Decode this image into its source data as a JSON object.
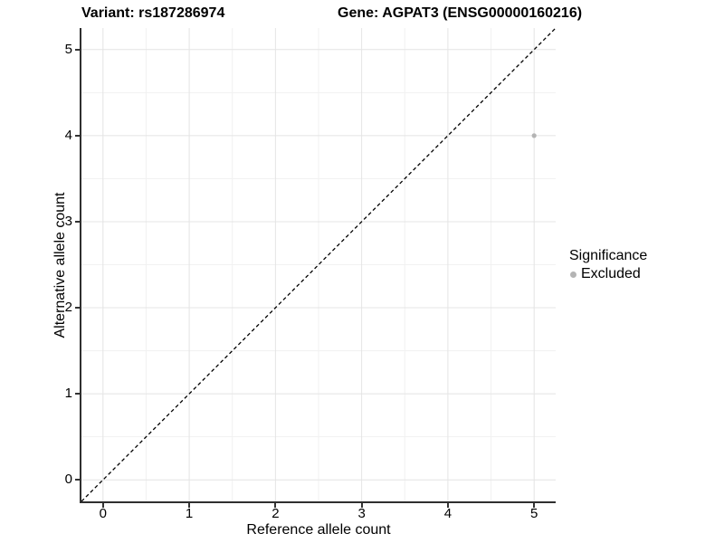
{
  "chart_data": {
    "type": "scatter",
    "title_left": "Variant: rs187286974",
    "title_right": "Gene: AGPAT3 (ENSG00000160216)",
    "xlabel": "Reference allele count",
    "ylabel": "Alternative allele count",
    "xlim": [
      -0.25,
      5.25
    ],
    "ylim": [
      -0.25,
      5.25
    ],
    "x_ticks": [
      0,
      1,
      2,
      3,
      4,
      5
    ],
    "y_ticks": [
      0,
      1,
      2,
      3,
      4,
      5
    ],
    "x_minor_ticks": [
      0.5,
      1.5,
      2.5,
      3.5,
      4.5
    ],
    "y_minor_ticks": [
      0.5,
      1.5,
      2.5,
      3.5,
      4.5
    ],
    "grid": "major+minor",
    "reference_line": {
      "slope": 1,
      "intercept": 0,
      "style": "dashed",
      "color": "#000000"
    },
    "series": [
      {
        "name": "Excluded",
        "color": "#b4b4b4",
        "points": [
          {
            "x": 5,
            "y": 4
          }
        ]
      }
    ],
    "legend": {
      "title": "Significance",
      "position": "right",
      "items": [
        {
          "label": "Excluded",
          "color": "#b4b4b4"
        }
      ]
    },
    "colors": {
      "grid_major": "#e4e4e4",
      "grid_minor": "#f1f1f1",
      "axis_line": "#2f2f2f",
      "tick_mark": "#333333",
      "text": "#000000",
      "panel_background": "#ffffff"
    }
  }
}
